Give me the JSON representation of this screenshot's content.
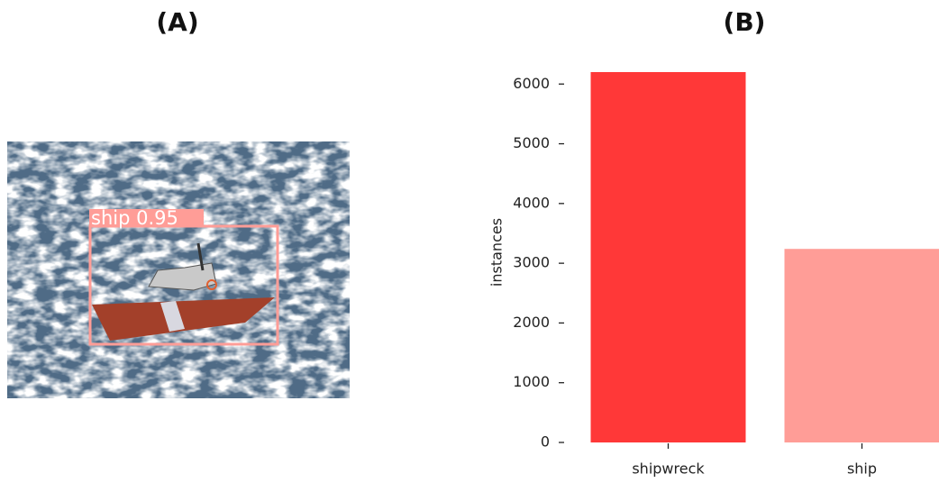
{
  "panel_a": {
    "label": "(A)",
    "detection": "ship 0.95"
  },
  "chart_data": {
    "type": "bar",
    "label": "(B)",
    "y_label": "instances",
    "categories": [
      "shipwreck",
      "ship"
    ],
    "values": [
      6200,
      3240
    ],
    "colors": [
      "#ff3838",
      "#ff9d97"
    ],
    "ylim": [
      0,
      6200
    ],
    "yticks": [
      0,
      1000,
      2000,
      3000,
      4000,
      5000,
      6000
    ],
    "grid": false
  }
}
